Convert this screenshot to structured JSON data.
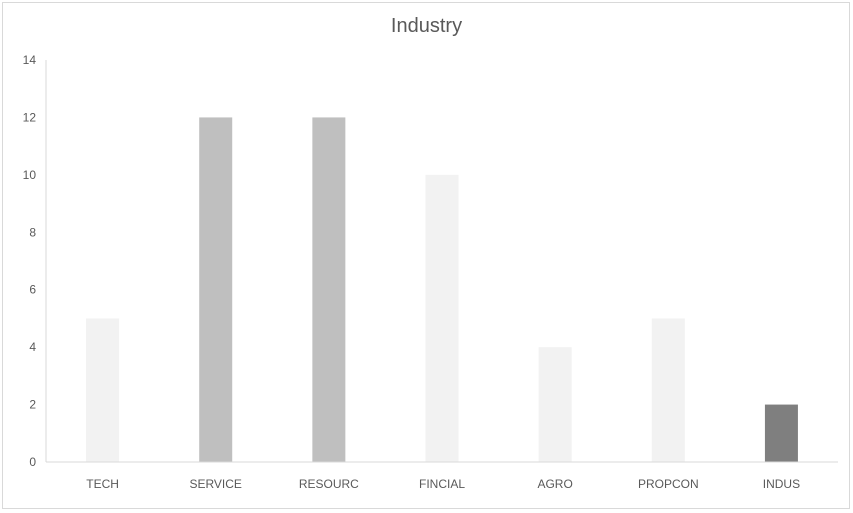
{
  "chart_data": {
    "type": "bar",
    "title": "Industry",
    "categories": [
      "TECH",
      "SERVICE",
      "RESOURC",
      "FINCIAL",
      "AGRO",
      "PROPCON",
      "INDUS"
    ],
    "values": [
      5,
      12,
      12,
      10,
      4,
      5,
      2
    ],
    "bar_colors": [
      "#f2f2f2",
      "#bfbfbf",
      "#bfbfbf",
      "#f2f2f2",
      "#f2f2f2",
      "#f2f2f2",
      "#7f7f7f"
    ],
    "ylim": [
      0,
      14
    ],
    "yticks": [
      0,
      2,
      4,
      6,
      8,
      10,
      12,
      14
    ],
    "xlabel": "",
    "ylabel": "",
    "grid": false,
    "legend": "none"
  }
}
